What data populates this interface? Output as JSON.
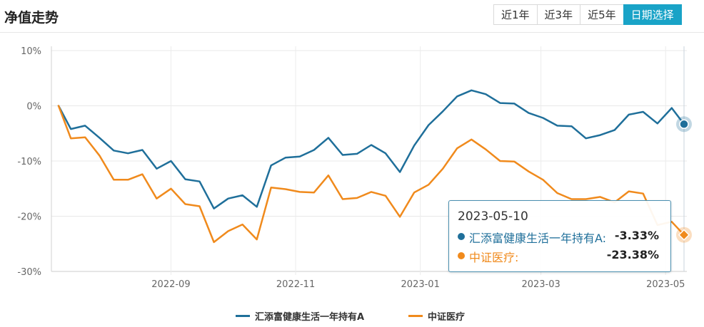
{
  "header": {
    "title": "净值走势",
    "range_tabs": [
      {
        "label": "近1年",
        "active": false
      },
      {
        "label": "近3年",
        "active": false
      },
      {
        "label": "近5年",
        "active": false
      },
      {
        "label": "日期选择",
        "active": true
      }
    ],
    "active_color": "#19a3c7"
  },
  "tooltip": {
    "date": "2023-05-10",
    "rows": [
      {
        "name": "汇添富健康生活一年持有A:",
        "value": "-3.33%",
        "color": "#1f6f9a"
      },
      {
        "name": "中证医疗:",
        "value": "-23.38%",
        "color": "#f08a1c"
      }
    ]
  },
  "chart_data": {
    "type": "line",
    "title": "",
    "xlabel": "",
    "ylabel": "",
    "y_unit": "%",
    "ylim": [
      -30,
      10
    ],
    "y_ticks": [
      10,
      0,
      -10,
      -20,
      -30
    ],
    "x_range": [
      "2022-07-08",
      "2023-05-10"
    ],
    "x_ticks": [
      "2022-09-01",
      "2022-11-01",
      "2023-01-01",
      "2023-03-01",
      "2023-05-01"
    ],
    "x_tick_labels": [
      "2022-09",
      "2022-11",
      "2023-01",
      "2023-03",
      "2023-05"
    ],
    "grid": true,
    "legend_position": "bottom-center",
    "highlight_date": "2023-05-10",
    "x": [
      "2022-07-08",
      "2022-07-14",
      "2022-07-21",
      "2022-07-28",
      "2022-08-04",
      "2022-08-11",
      "2022-08-18",
      "2022-08-25",
      "2022-09-01",
      "2022-09-08",
      "2022-09-15",
      "2022-09-22",
      "2022-09-29",
      "2022-10-06",
      "2022-10-13",
      "2022-10-20",
      "2022-10-27",
      "2022-11-03",
      "2022-11-10",
      "2022-11-17",
      "2022-11-24",
      "2022-12-01",
      "2022-12-08",
      "2022-12-15",
      "2022-12-22",
      "2022-12-29",
      "2023-01-05",
      "2023-01-12",
      "2023-01-19",
      "2023-01-26",
      "2023-02-02",
      "2023-02-09",
      "2023-02-16",
      "2023-02-23",
      "2023-03-02",
      "2023-03-09",
      "2023-03-16",
      "2023-03-23",
      "2023-03-30",
      "2023-04-06",
      "2023-04-13",
      "2023-04-20",
      "2023-04-27",
      "2023-05-04",
      "2023-05-10"
    ],
    "series": [
      {
        "name": "汇添富健康生活一年持有A",
        "color": "#1f6f9a",
        "values": [
          0,
          -4.2,
          -3.6,
          -5.8,
          -8.1,
          -8.6,
          -8.0,
          -11.4,
          -10.0,
          -13.3,
          -13.7,
          -18.6,
          -16.8,
          -16.2,
          -18.3,
          -10.8,
          -9.4,
          -9.2,
          -8.0,
          -5.8,
          -8.9,
          -8.7,
          -7.1,
          -8.6,
          -12.0,
          -7.2,
          -3.5,
          -1.0,
          1.7,
          2.8,
          2.1,
          0.5,
          0.4,
          -1.3,
          -2.2,
          -3.6,
          -3.7,
          -5.9,
          -5.3,
          -4.4,
          -1.6,
          -1.1,
          -3.2,
          -0.4,
          -3.33
        ]
      },
      {
        "name": "中证医疗",
        "color": "#f08a1c",
        "values": [
          0,
          -5.9,
          -5.7,
          -9.0,
          -13.4,
          -13.4,
          -12.4,
          -16.8,
          -15.0,
          -17.8,
          -18.2,
          -24.7,
          -22.7,
          -21.5,
          -24.2,
          -14.8,
          -15.1,
          -15.6,
          -15.7,
          -12.6,
          -16.9,
          -16.7,
          -15.6,
          -16.3,
          -20.1,
          -15.7,
          -14.3,
          -11.4,
          -7.7,
          -6.1,
          -7.9,
          -10.0,
          -10.1,
          -11.9,
          -13.4,
          -15.8,
          -16.9,
          -16.9,
          -16.5,
          -17.5,
          -15.5,
          -15.9,
          -21.6,
          -21.0,
          -23.38
        ]
      }
    ]
  }
}
